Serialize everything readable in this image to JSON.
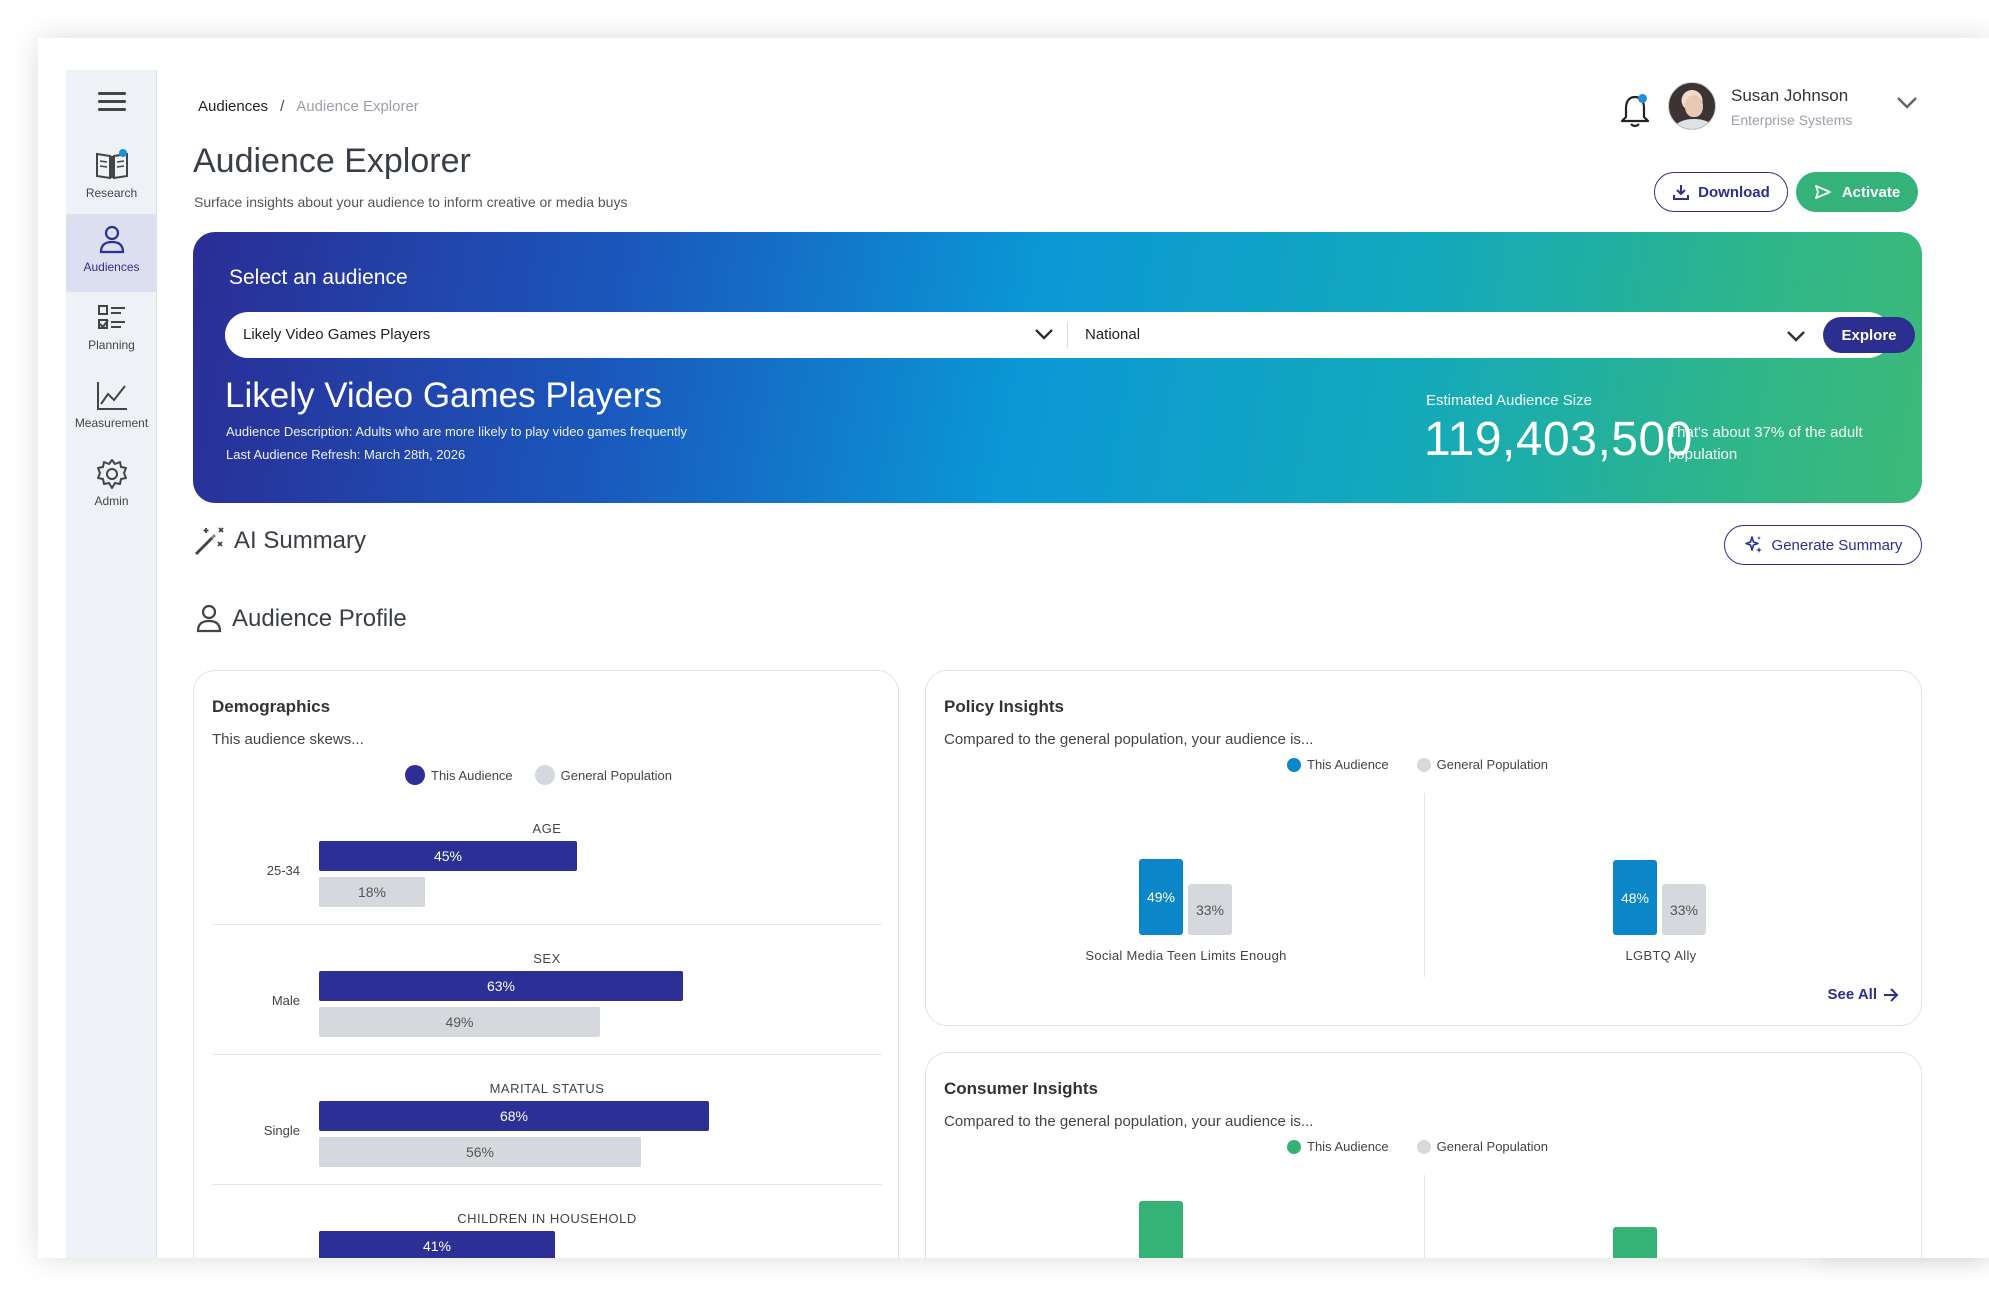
{
  "breadcrumb": {
    "root": "Audiences",
    "separator": "/",
    "current": "Audience Explorer"
  },
  "page": {
    "title": "Audience Explorer",
    "subtitle": "Surface insights about your audience to inform creative or media buys"
  },
  "sidebar": {
    "items": [
      {
        "label": "Research",
        "icon": "book-icon"
      },
      {
        "label": "Audiences",
        "icon": "person-icon",
        "active": true
      },
      {
        "label": "Planning",
        "icon": "checklist-icon"
      },
      {
        "label": "Measurement",
        "icon": "line-chart-icon"
      },
      {
        "label": "Admin",
        "icon": "gear-icon"
      }
    ]
  },
  "user": {
    "name": "Susan Johnson",
    "org": "Enterprise Systems"
  },
  "actions": {
    "download": "Download",
    "activate": "Activate"
  },
  "hero": {
    "label": "Select an audience",
    "audience_select": "Likely Video Games Players",
    "geo_select": "National",
    "explore": "Explore",
    "audience_name": "Likely Video Games Players",
    "description": "Audience Description: Adults who are more likely to play video games frequently",
    "refresh": "Last Audience Refresh: March 28th, 2026",
    "est_label": "Estimated Audience Size",
    "est_value": "119,403,500",
    "est_note": "That's about 37% of the adult population"
  },
  "ai_summary": {
    "title": "AI Summary",
    "generate": "Generate Summary"
  },
  "audience_profile": {
    "title": "Audience Profile"
  },
  "demographics": {
    "title": "Demographics",
    "subtitle": "This audience skews...",
    "legend": {
      "audience": "This Audience",
      "general": "General Population"
    },
    "sections": [
      {
        "heading": "AGE",
        "category": "25-34",
        "audience": "45%",
        "general": "18%"
      },
      {
        "heading": "SEX",
        "category": "Male",
        "audience": "63%",
        "general": "49%"
      },
      {
        "heading": "MARITAL STATUS",
        "category": "Single",
        "audience": "68%",
        "general": "56%"
      },
      {
        "heading": "CHILDREN IN HOUSEHOLD",
        "category": "",
        "audience": "41%",
        "general": ""
      }
    ]
  },
  "policy": {
    "title": "Policy Insights",
    "subtitle": "Compared to the general population, your audience is...",
    "legend": {
      "audience": "This Audience",
      "general": "General Population"
    },
    "items": [
      {
        "label": "Social Media Teen Limits Enough",
        "audience": "49%",
        "general": "33%"
      },
      {
        "label": "LGBTQ Ally",
        "audience": "48%",
        "general": "33%"
      }
    ],
    "see_all": "See All"
  },
  "consumer": {
    "title": "Consumer Insights",
    "subtitle": "Compared to the general population, your audience is...",
    "legend": {
      "audience": "This Audience",
      "general": "General Population"
    }
  },
  "colors": {
    "brand_navy": "#2c2f8f",
    "audience_bar": "#2c2f96",
    "policy_bar": "#0b86c8",
    "consumer_bar": "#35b376",
    "general_bar": "#d5d8dc",
    "activate_green": "#34b27a"
  }
}
